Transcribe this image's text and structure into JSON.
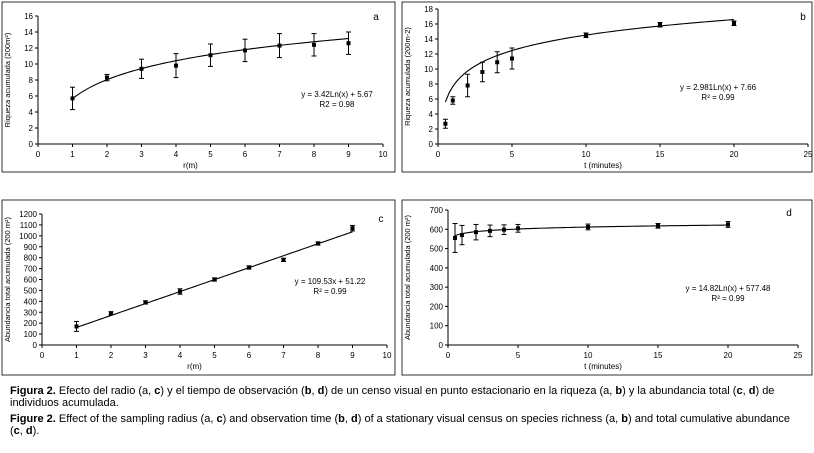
{
  "chart_data": [
    {
      "type": "scatter",
      "panel_letter": "a",
      "x": [
        1,
        2,
        3,
        4,
        5,
        6,
        7,
        8,
        9
      ],
      "y": [
        5.7,
        8.3,
        9.4,
        9.8,
        11.1,
        11.7,
        12.3,
        12.4,
        12.6
      ],
      "error": [
        1.4,
        0.4,
        1.2,
        1.5,
        1.4,
        1.4,
        1.5,
        1.4,
        1.4
      ],
      "fit": {
        "model": "log",
        "a": 3.42,
        "b": 5.67,
        "x_from": 1,
        "x_to": 9
      },
      "equation": "y = 3.42Ln(x) + 5.67",
      "r2_label": "R2 = 0.98",
      "xlabel": "r(m)",
      "ylabel": "Riqueza acumulada (200m²)",
      "xlim": [
        0,
        10
      ],
      "ylim": [
        0,
        16
      ],
      "xticks": [
        0,
        1,
        2,
        3,
        4,
        5,
        6,
        7,
        8,
        9,
        10
      ],
      "yticks": [
        0,
        2,
        4,
        6,
        8,
        10,
        12,
        14,
        16
      ],
      "xtick_labels": [
        "0",
        "1",
        "2",
        "3",
        "4",
        "5",
        "6",
        "7",
        "8",
        "9",
        "10"
      ],
      "ytick_labels": [
        "0",
        "2",
        "4",
        "6",
        "8",
        "10",
        "12",
        "14",
        "16"
      ],
      "grid": false
    },
    {
      "type": "scatter",
      "panel_letter": "b",
      "x": [
        0.5,
        1,
        2,
        3,
        4,
        5,
        10,
        15,
        20
      ],
      "y": [
        2.7,
        5.8,
        7.8,
        9.6,
        10.9,
        11.4,
        14.5,
        15.9,
        16.1
      ],
      "error": [
        0.6,
        0.5,
        1.5,
        1.3,
        1.4,
        1.4,
        0.3,
        0.3,
        0.3
      ],
      "fit": {
        "model": "log",
        "a": 2.981,
        "b": 7.66,
        "x_from": 0.5,
        "x_to": 20
      },
      "equation": "y = 2.981Ln(x) + 7.66",
      "r2_label": "R² = 0.99",
      "xlabel": "t (minutes)",
      "ylabel": "Riqueza acumulada (200m-2)",
      "xlim": [
        0,
        25
      ],
      "ylim": [
        0,
        18
      ],
      "xticks": [
        0,
        5,
        10,
        15,
        20,
        25
      ],
      "yticks": [
        0,
        2,
        4,
        6,
        8,
        10,
        12,
        14,
        16,
        18
      ],
      "xtick_labels": [
        "0",
        "5",
        "10",
        "15",
        "20",
        "25"
      ],
      "ytick_labels": [
        "0",
        "2",
        "4",
        "6",
        "8",
        "10",
        "12",
        "14",
        "16",
        "18"
      ],
      "grid": false
    },
    {
      "type": "scatter",
      "panel_letter": "c",
      "x": [
        1,
        2,
        3,
        4,
        5,
        6,
        7,
        8,
        9
      ],
      "y": [
        170,
        290,
        390,
        490,
        600,
        710,
        780,
        930,
        1070
      ],
      "error": [
        45,
        15,
        15,
        25,
        15,
        15,
        15,
        15,
        25
      ],
      "fit": {
        "model": "linear",
        "a": 109.53,
        "b": 51.22,
        "x_from": 1,
        "x_to": 9
      },
      "equation": "y = 109.53x + 51.22",
      "r2_label": "R² = 0.99",
      "xlabel": "r(m)",
      "ylabel": "Abundancia total acumulada (200 m²)",
      "xlim": [
        0,
        10
      ],
      "ylim": [
        0,
        1200
      ],
      "xticks": [
        0,
        1,
        2,
        3,
        4,
        5,
        6,
        7,
        8,
        9,
        10
      ],
      "yticks": [
        0,
        100,
        200,
        300,
        400,
        500,
        600,
        700,
        800,
        900,
        1000,
        1100,
        1200
      ],
      "xtick_labels": [
        "0",
        "1",
        "2",
        "3",
        "4",
        "5",
        "6",
        "7",
        "8",
        "9",
        "10"
      ],
      "ytick_labels": [
        "0",
        "100",
        "200",
        "300",
        "400",
        "500",
        "600",
        "700",
        "800",
        "900",
        "1000",
        "1100",
        "1200"
      ],
      "grid": false
    },
    {
      "type": "scatter",
      "panel_letter": "d",
      "x": [
        0.5,
        1,
        2,
        3,
        4,
        5,
        10,
        15,
        20
      ],
      "y": [
        555,
        570,
        585,
        592,
        598,
        605,
        612,
        618,
        625
      ],
      "error": [
        75,
        50,
        40,
        30,
        25,
        20,
        15,
        12,
        15
      ],
      "fit": {
        "model": "log",
        "a": 14.82,
        "b": 577.48,
        "x_from": 0.5,
        "x_to": 20
      },
      "equation": "y = 14.82Ln(x) + 577.48",
      "r2_label": "R² = 0.99",
      "xlabel": "t (minutes)",
      "ylabel": "Abundancia total acumulada (200 m²)",
      "xlim": [
        0,
        25
      ],
      "ylim": [
        0,
        700
      ],
      "xticks": [
        0,
        5,
        10,
        15,
        20,
        25
      ],
      "yticks": [
        0,
        100,
        200,
        300,
        400,
        500,
        600,
        700
      ],
      "xtick_labels": [
        "0",
        "5",
        "10",
        "15",
        "20",
        "25"
      ],
      "ytick_labels": [
        "0",
        "100",
        "200",
        "300",
        "400",
        "500",
        "600",
        "700"
      ],
      "grid": false
    }
  ],
  "captions": {
    "es": {
      "label": "Figura 2.",
      "p1": " Efecto del radio (a, ",
      "c": "c",
      "p2": ") y el tiempo de observación (",
      "b": "b",
      "p3": ", ",
      "d": "d",
      "p4": ") de un censo visual en punto estacionario en la riqueza (a, ",
      "p5": ") y la abundancia total (",
      "p6": ") de individuos acumulada."
    },
    "en": {
      "label": "Figure 2.",
      "p1": " Effect of the sampling radius (a, ",
      "c": "c",
      "p2": ") and observation time (",
      "b": "b",
      "p3": ", ",
      "d": "d",
      "p4": ") of a stationary visual census on species richness (a, ",
      "p5": ") and total cumulative abundance (",
      "p6": ")."
    }
  }
}
